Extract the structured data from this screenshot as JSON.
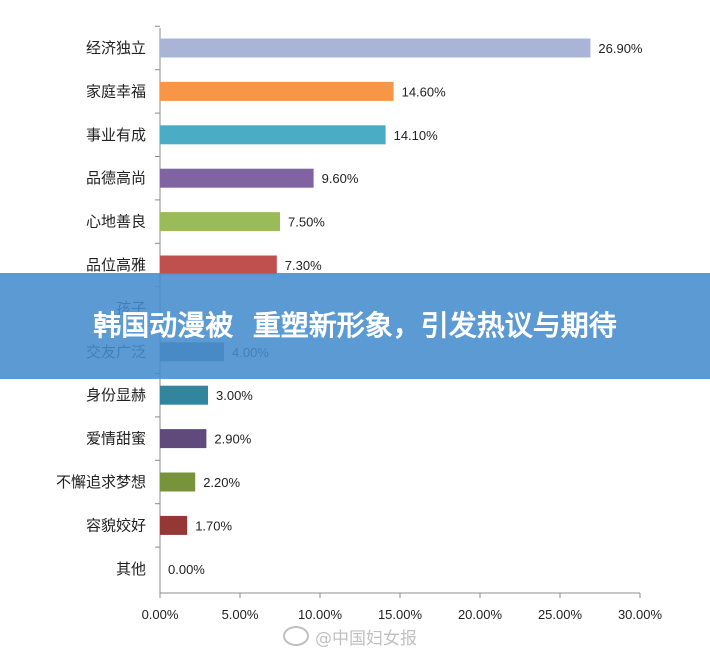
{
  "banner": {
    "title": "韩国动漫被  重塑新形象，引发热议与期待"
  },
  "watermark": {
    "text": "@中国妇女报"
  },
  "chart_data": {
    "type": "bar",
    "orientation": "horizontal",
    "categories": [
      "经济独立",
      "家庭幸福",
      "事业有成",
      "品德高尚",
      "心地善良",
      "品位高雅",
      "孩子",
      "交友广泛",
      "身份显赫",
      "爱情甜蜜",
      "不懈追求梦想",
      "容貌姣好",
      "其他"
    ],
    "values": [
      26.9,
      14.6,
      14.1,
      9.6,
      7.5,
      7.3,
      null,
      4.0,
      3.0,
      2.9,
      2.2,
      1.7,
      0.0
    ],
    "value_labels": [
      "26.90%",
      "14.60%",
      "14.10%",
      "9.60%",
      "7.50%",
      "7.30%",
      "",
      "4.00%",
      "3.00%",
      "2.90%",
      "2.20%",
      "1.70%",
      "0.00%"
    ],
    "colors": [
      "#a9b4d6",
      "#f79646",
      "#4bacc6",
      "#8064a2",
      "#9bbb59",
      "#c0504d",
      "#4f81bd",
      "#5a7a95",
      "#31859c",
      "#604a7b",
      "#77933c",
      "#953735",
      "#1f497d"
    ],
    "xlim": [
      0,
      30
    ],
    "x_ticks": [
      "0.00%",
      "5.00%",
      "10.00%",
      "15.00%",
      "20.00%",
      "25.00%",
      "30.00%"
    ],
    "x_tick_values": [
      0,
      5,
      10,
      15,
      20,
      25,
      30
    ],
    "grid": false,
    "title": "",
    "xlabel": "",
    "ylabel": ""
  }
}
